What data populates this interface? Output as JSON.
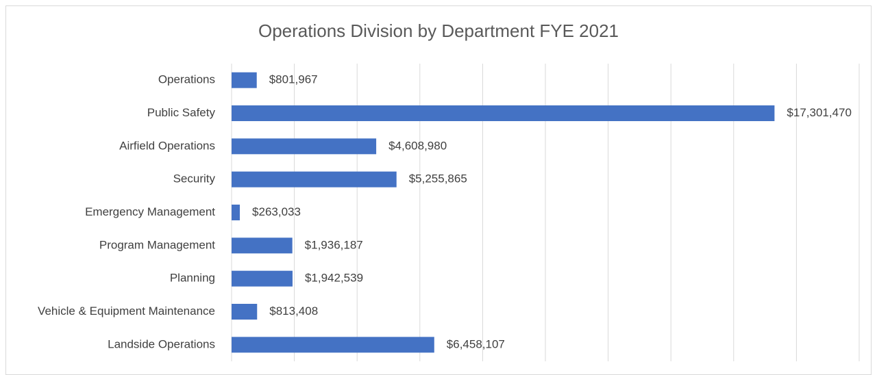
{
  "chart_data": {
    "type": "bar",
    "orientation": "horizontal",
    "title": "Operations Division by Department FYE 2021",
    "categories": [
      "Operations",
      "Public Safety",
      "Airfield Operations",
      "Security",
      "Emergency Management",
      "Program Management",
      "Planning",
      "Vehicle & Equipment Maintenance",
      "Landside Operations"
    ],
    "values": [
      801967,
      17301470,
      4608980,
      5255865,
      263033,
      1936187,
      1942539,
      813408,
      6458107
    ],
    "value_labels": [
      "$801,967",
      "$17,301,470",
      "$4,608,980",
      "$5,255,865",
      "$263,033",
      "$1,936,187",
      "$1,942,539",
      "$813,408",
      "$6,458,107"
    ],
    "color": "#4472c4",
    "xlim": [
      0,
      20000000
    ],
    "xticks": [
      0,
      2000000,
      4000000,
      6000000,
      8000000,
      10000000,
      12000000,
      14000000,
      16000000,
      18000000,
      20000000
    ],
    "grid": true
  }
}
